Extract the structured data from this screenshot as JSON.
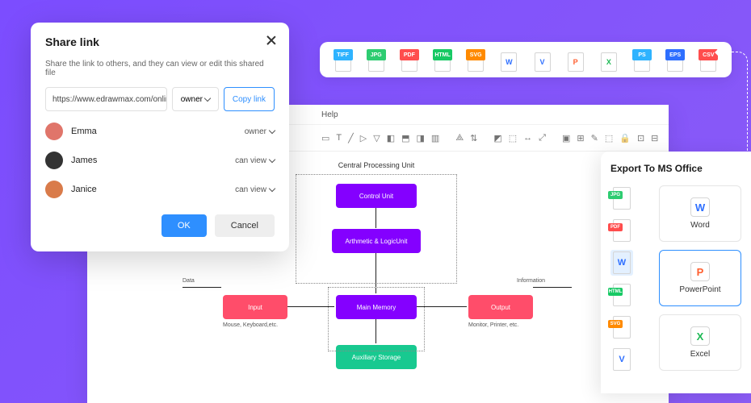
{
  "formats": [
    {
      "label": "TIFF",
      "chipColor": "#2eb3ff",
      "pageText": ""
    },
    {
      "label": "JPG",
      "chipColor": "#2ecc71",
      "pageText": ""
    },
    {
      "label": "PDF",
      "chipColor": "#ff4d4d",
      "pageText": ""
    },
    {
      "label": "HTML",
      "chipColor": "#17c964",
      "pageText": ""
    },
    {
      "label": "SVG",
      "chipColor": "#ff8a00",
      "pageText": ""
    },
    {
      "label": "",
      "chipColor": "",
      "pageText": "W",
      "pageColor": "#2e6fff"
    },
    {
      "label": "",
      "chipColor": "",
      "pageText": "V",
      "pageColor": "#2e6fff"
    },
    {
      "label": "",
      "chipColor": "",
      "pageText": "P",
      "pageColor": "#ff5e2e"
    },
    {
      "label": "",
      "chipColor": "",
      "pageText": "X",
      "pageColor": "#1db954"
    },
    {
      "label": "PS",
      "chipColor": "#2eb3ff",
      "pageText": ""
    },
    {
      "label": "EPS",
      "chipColor": "#2e6fff",
      "pageText": ""
    },
    {
      "label": "CSV",
      "chipColor": "#ff4d4d",
      "pageText": ""
    }
  ],
  "share": {
    "title": "Share link",
    "description": "Share the link to others, and they can view or edit this shared file",
    "url": "https://www.edrawmax.com/online/fil",
    "linkPerm": "owner",
    "copyLabel": "Copy link",
    "okLabel": "OK",
    "cancelLabel": "Cancel",
    "users": [
      {
        "name": "Emma",
        "perm": "owner",
        "color": "#e0756a"
      },
      {
        "name": "James",
        "perm": "can view",
        "color": "#333333"
      },
      {
        "name": "Janice",
        "perm": "can view",
        "color": "#d97b4a"
      }
    ]
  },
  "menubar": {
    "help": "Help"
  },
  "diagram": {
    "title": "Central Processing Unit",
    "nodes": {
      "control": {
        "label": "Control Unit",
        "color": "#8400ff"
      },
      "alu": {
        "label": "Arthmetic & LogicUnit",
        "color": "#8400ff"
      },
      "memory": {
        "label": "Main Memory",
        "color": "#8400ff"
      },
      "aux": {
        "label": "Auxiliary Storage",
        "color": "#18c990"
      },
      "input": {
        "label": "Input",
        "color": "#ff4d6a"
      },
      "output": {
        "label": "Output",
        "color": "#ff4d6a"
      }
    },
    "labels": {
      "data": "Data",
      "info": "Information",
      "inputSub": "Mouse, Keyboard,etc.",
      "outputSub": "Monitor, Printer, etc."
    }
  },
  "export": {
    "title": "Export To MS Office",
    "leftFormats": [
      {
        "label": "JPG",
        "color": "#2ecc71"
      },
      {
        "label": "PDF",
        "color": "#ff4d4d"
      },
      {
        "label": "W",
        "color": "#2e6fff",
        "isApp": true,
        "selected": true
      },
      {
        "label": "HTML",
        "color": "#17c964"
      },
      {
        "label": "SVG",
        "color": "#ff8a00"
      },
      {
        "label": "V",
        "color": "#2e6fff",
        "isApp": true
      }
    ],
    "cards": [
      {
        "label": "Word",
        "icon": "W",
        "iconColor": "#2e6fff"
      },
      {
        "label": "PowerPoint",
        "icon": "P",
        "iconColor": "#ff5e2e",
        "active": true
      },
      {
        "label": "Excel",
        "icon": "X",
        "iconColor": "#1db954"
      }
    ]
  }
}
